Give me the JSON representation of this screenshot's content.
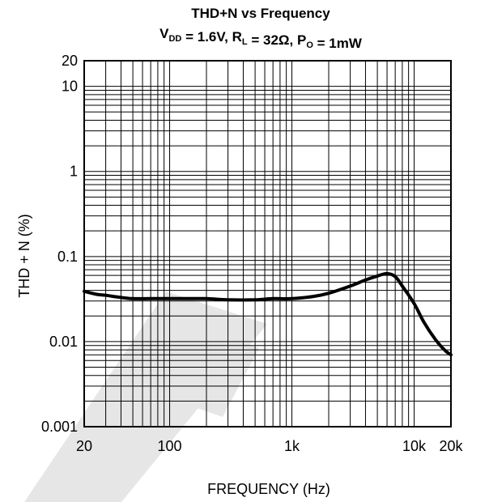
{
  "chart_data": {
    "type": "line",
    "title": {
      "line1": "THD+N vs Frequency",
      "line2": [
        {
          "text": "V",
          "sub": "DD"
        },
        {
          "text": " = 1.6V, R",
          "sub": "L"
        },
        {
          "text": " = 32Ω, P",
          "sub": "O"
        },
        {
          "text": " = 1mW",
          "sub": ""
        }
      ]
    },
    "xlabel": "FREQUENCY (Hz)",
    "ylabel": "THD + N (%)",
    "xscale": "log",
    "yscale": "log",
    "xlim": [
      20,
      20000
    ],
    "ylim": [
      0.001,
      20
    ],
    "grid": true,
    "x_ticks": [
      {
        "value": 20,
        "label": "20"
      },
      {
        "value": 100,
        "label": "100"
      },
      {
        "value": 1000,
        "label": "1k"
      },
      {
        "value": 10000,
        "label": "10k"
      },
      {
        "value": 20000,
        "label": "20k"
      }
    ],
    "y_ticks": [
      {
        "value": 0.001,
        "label": "0.001"
      },
      {
        "value": 0.01,
        "label": "0.01"
      },
      {
        "value": 0.1,
        "label": "0.1"
      },
      {
        "value": 1,
        "label": "1"
      },
      {
        "value": 10,
        "label": "10"
      },
      {
        "value": 20,
        "label": "20"
      }
    ],
    "series": [
      {
        "x": [
          20,
          25,
          30,
          40,
          50,
          70,
          100,
          150,
          200,
          300,
          500,
          700,
          1000,
          1500,
          2000,
          3000,
          4000,
          5000,
          6000,
          7000,
          8000,
          10000,
          12000,
          15000,
          18000,
          20000
        ],
        "y": [
          0.039,
          0.036,
          0.035,
          0.033,
          0.032,
          0.032,
          0.032,
          0.032,
          0.032,
          0.031,
          0.031,
          0.032,
          0.032,
          0.034,
          0.037,
          0.045,
          0.053,
          0.059,
          0.063,
          0.058,
          0.045,
          0.028,
          0.017,
          0.0105,
          0.0078,
          0.007
        ]
      }
    ]
  },
  "watermark": {
    "color": "#e6e6e6"
  }
}
